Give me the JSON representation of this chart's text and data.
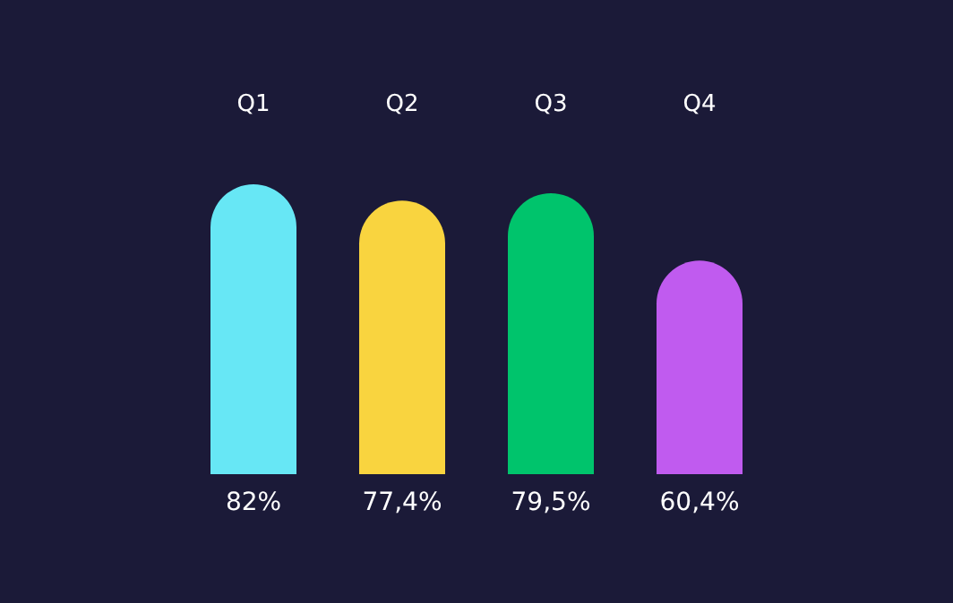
{
  "chart_data": {
    "type": "bar",
    "categories": [
      "Q1",
      "Q2",
      "Q3",
      "Q4"
    ],
    "values": [
      82,
      77.4,
      79.5,
      60.4
    ],
    "colors": [
      "#67e7f5",
      "#f9d43f",
      "#00c46c",
      "#c05bef"
    ],
    "value_labels": [
      "82%",
      "77,4%",
      "79,5%",
      "60,4%"
    ]
  }
}
